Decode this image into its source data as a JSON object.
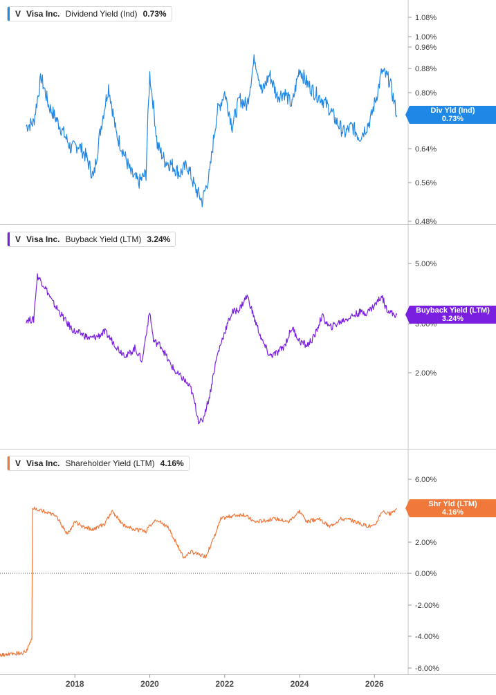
{
  "colors": {
    "dividend": "#1f87e5",
    "buyback": "#7a1fe0",
    "shareholder": "#f0783a",
    "grid": "#d0d0d0"
  },
  "chart_data": [
    {
      "type": "line",
      "legend": {
        "ticker": "V",
        "company": "Visa Inc.",
        "metric": "Dividend Yield (Ind)",
        "value": "0.73%"
      },
      "badge": {
        "label": "Div Yld (Ind)",
        "value": "0.73%"
      },
      "yaxis": {
        "ticks": [
          "1.08%",
          "1.00%",
          "0.96%",
          "0.88%",
          "0.80%",
          "0.72%",
          "0.64%",
          "0.56%",
          "0.48%"
        ],
        "ylim": [
          0.48,
          1.08
        ],
        "scale": "log"
      },
      "series": [
        {
          "x": [
            2016.7,
            2016.9,
            2017.1,
            2017.3,
            2017.5,
            2017.7,
            2017.9,
            2018.1,
            2018.3,
            2018.5,
            2018.7,
            2018.9,
            2019.1,
            2019.3,
            2019.5,
            2019.7,
            2019.9,
            2020.0,
            2020.2,
            2020.4,
            2020.6,
            2020.8,
            2021.0,
            2021.2,
            2021.4,
            2021.6,
            2021.8,
            2022.0,
            2022.2,
            2022.4,
            2022.6,
            2022.8,
            2023.0,
            2023.2,
            2023.4,
            2023.6,
            2023.8,
            2024.0,
            2024.2,
            2024.4,
            2024.6,
            2024.8,
            2025.0,
            2025.2,
            2025.4,
            2025.6,
            2025.8,
            2025.9,
            2026.1,
            2026.2,
            2026.4,
            2026.6
          ],
          "values": [
            0.7,
            0.71,
            0.85,
            0.76,
            0.72,
            0.68,
            0.64,
            0.65,
            0.62,
            0.57,
            0.7,
            0.82,
            0.68,
            0.63,
            0.58,
            0.56,
            0.58,
            0.86,
            0.65,
            0.61,
            0.6,
            0.58,
            0.6,
            0.55,
            0.52,
            0.58,
            0.74,
            0.8,
            0.7,
            0.78,
            0.76,
            0.92,
            0.8,
            0.86,
            0.79,
            0.8,
            0.76,
            0.88,
            0.83,
            0.8,
            0.78,
            0.75,
            0.71,
            0.68,
            0.7,
            0.67,
            0.7,
            0.72,
            0.81,
            0.87,
            0.84,
            0.73
          ]
        }
      ]
    },
    {
      "type": "line",
      "legend": {
        "ticker": "V",
        "company": "Visa Inc.",
        "metric": "Buyback Yield (LTM)",
        "value": "3.24%"
      },
      "badge": {
        "label": "Buyback Yield (LTM)",
        "value": "3.24%"
      },
      "yaxis": {
        "ticks": [
          "5.00%",
          "3.00%",
          "2.00%"
        ],
        "ylim": [
          1.2,
          6.0
        ],
        "scale": "log"
      },
      "series": [
        {
          "x": [
            2016.7,
            2016.9,
            2017.0,
            2017.2,
            2017.4,
            2017.6,
            2017.8,
            2018.0,
            2018.2,
            2018.4,
            2018.6,
            2018.8,
            2019.0,
            2019.2,
            2019.4,
            2019.6,
            2019.8,
            2020.0,
            2020.1,
            2020.3,
            2020.5,
            2020.7,
            2020.9,
            2021.1,
            2021.3,
            2021.4,
            2021.6,
            2021.8,
            2022.0,
            2022.2,
            2022.4,
            2022.6,
            2022.8,
            2023.0,
            2023.2,
            2023.4,
            2023.6,
            2023.8,
            2024.0,
            2024.2,
            2024.4,
            2024.6,
            2024.8,
            2025.0,
            2025.2,
            2025.4,
            2025.6,
            2025.8,
            2026.0,
            2026.2,
            2026.3,
            2026.5,
            2026.6
          ],
          "values": [
            3.1,
            3.1,
            4.5,
            4.1,
            3.6,
            3.3,
            3.0,
            2.8,
            2.75,
            2.65,
            2.7,
            2.8,
            2.6,
            2.4,
            2.3,
            2.45,
            2.2,
            3.3,
            2.6,
            2.5,
            2.2,
            2.0,
            1.9,
            1.75,
            1.35,
            1.33,
            1.65,
            2.3,
            2.8,
            3.3,
            3.4,
            3.8,
            3.1,
            2.6,
            2.3,
            2.35,
            2.5,
            2.9,
            2.6,
            2.5,
            2.7,
            3.2,
            2.9,
            3.0,
            3.1,
            3.2,
            3.3,
            3.3,
            3.5,
            3.8,
            3.45,
            3.24,
            3.24
          ]
        }
      ]
    },
    {
      "type": "line",
      "legend": {
        "ticker": "V",
        "company": "Visa Inc.",
        "metric": "Shareholder Yield (LTM)",
        "value": "4.16%"
      },
      "badge": {
        "label": "Shr Yld (LTM)",
        "value": "4.16%"
      },
      "yaxis": {
        "ticks": [
          "6.00%",
          "4.00%",
          "2.00%",
          "0.00%",
          "-2.00%",
          "-4.00%",
          "-6.00%"
        ],
        "ylim": [
          -6.0,
          6.0
        ],
        "scale": "linear"
      },
      "series": [
        {
          "x": [
            2016.0,
            2016.7,
            2016.85,
            2016.87,
            2017.0,
            2017.3,
            2017.5,
            2017.8,
            2018.0,
            2018.2,
            2018.5,
            2018.8,
            2019.0,
            2019.3,
            2019.6,
            2019.9,
            2020.0,
            2020.2,
            2020.5,
            2020.7,
            2020.9,
            2021.1,
            2021.3,
            2021.5,
            2021.7,
            2021.9,
            2022.2,
            2022.5,
            2022.8,
            2023.1,
            2023.4,
            2023.7,
            2024.0,
            2024.2,
            2024.5,
            2024.8,
            2025.1,
            2025.4,
            2025.7,
            2026.0,
            2026.2,
            2026.4,
            2026.6
          ],
          "values": [
            -5.2,
            -5.0,
            -4.2,
            4.2,
            4.1,
            3.9,
            3.7,
            2.5,
            3.3,
            3.0,
            2.8,
            3.2,
            4.0,
            3.1,
            2.8,
            2.7,
            3.1,
            3.4,
            2.9,
            2.0,
            1.0,
            1.4,
            1.2,
            1.1,
            2.2,
            3.5,
            3.7,
            3.8,
            3.3,
            3.4,
            3.5,
            3.3,
            4.0,
            3.3,
            3.5,
            3.0,
            3.5,
            3.4,
            3.1,
            3.0,
            4.0,
            3.8,
            4.16
          ]
        }
      ]
    }
  ],
  "x_axis": {
    "ticks": [
      "2018",
      "2020",
      "2022",
      "2024",
      "2026"
    ],
    "tick_values": [
      2018,
      2020,
      2022,
      2024,
      2026
    ],
    "xlim": [
      2016.0,
      2026.9
    ]
  }
}
